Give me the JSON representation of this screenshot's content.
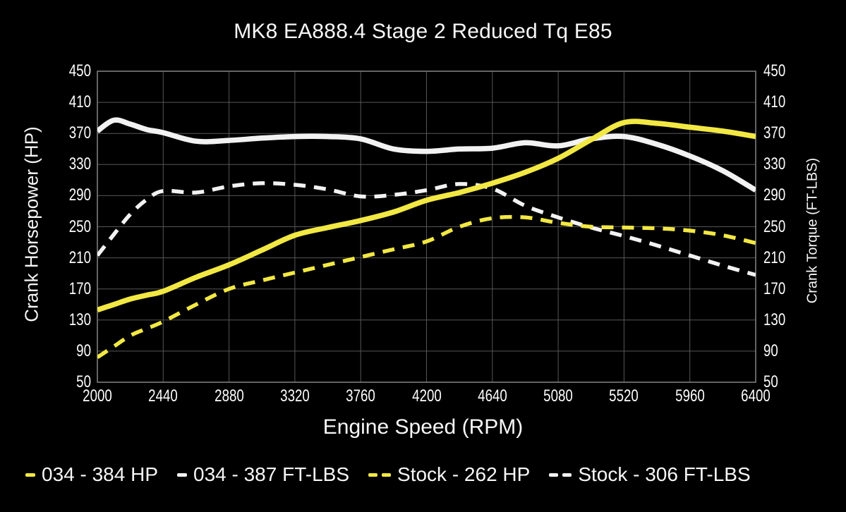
{
  "page": {
    "background": "#000000",
    "text_color": "#f7f7f7"
  },
  "chart_data": {
    "type": "line",
    "title": "MK8 EA888.4 Stage 2 Reduced Tq E85",
    "xlabel": "Engine Speed (RPM)",
    "ylabel_left": "Crank Horsepower (HP)",
    "ylabel_right": "Crank Torque (FT-LBS)",
    "xlim": [
      2000,
      6400
    ],
    "ylim": [
      50,
      450
    ],
    "x_ticks": [
      2000,
      2440,
      2880,
      3320,
      3760,
      4200,
      4640,
      5080,
      5520,
      5960,
      6400
    ],
    "y_ticks": [
      50,
      90,
      130,
      170,
      210,
      250,
      290,
      330,
      370,
      410,
      450
    ],
    "grid": true,
    "grid_color": "#575757",
    "border_color": "#7d7d7d",
    "legend_position": "bottom",
    "x": [
      2000,
      2110,
      2220,
      2330,
      2440,
      2660,
      2880,
      3100,
      3320,
      3540,
      3760,
      3980,
      4200,
      4420,
      4640,
      4860,
      5080,
      5300,
      5520,
      5740,
      5960,
      6180,
      6400
    ],
    "series": [
      {
        "name": "034 - 387 FT-LBS",
        "axis": "torque",
        "color": "#f2f2f2",
        "dash": "solid",
        "width": 7.5,
        "peak": 387,
        "values": [
          373,
          387,
          382,
          375,
          371,
          360,
          361,
          364,
          366,
          366,
          363,
          350,
          347,
          350,
          351,
          358,
          354,
          363,
          366,
          356,
          341,
          322,
          297
        ]
      },
      {
        "name": "Stock - 306 FT-LBS",
        "axis": "torque",
        "color": "#f2f2f2",
        "dash": "dashed",
        "width": 5.5,
        "peak": 306,
        "values": [
          213,
          240,
          266,
          285,
          296,
          294,
          302,
          306,
          304,
          298,
          289,
          291,
          297,
          305,
          299,
          277,
          262,
          249,
          238,
          226,
          213,
          200,
          188
        ]
      },
      {
        "name": "Stock - 262 HP",
        "axis": "hp",
        "color": "#f2e843",
        "dash": "dashed",
        "width": 5.5,
        "peak": 262,
        "values": [
          82,
          96,
          110,
          119,
          128,
          150,
          170,
          181,
          191,
          201,
          211,
          221,
          231,
          250,
          261,
          262,
          255,
          250,
          249,
          248,
          245,
          239,
          229
        ]
      },
      {
        "name": "034 - 384 HP",
        "axis": "hp",
        "color": "#f2e843",
        "dash": "solid",
        "width": 7.5,
        "peak": 384,
        "values": [
          143,
          150,
          157,
          162,
          167,
          185,
          201,
          220,
          239,
          249,
          258,
          269,
          284,
          294,
          306,
          320,
          338,
          362,
          384,
          383,
          378,
          373,
          366
        ]
      }
    ],
    "legend_order": [
      "034 - 384 HP",
      "034 - 387 FT-LBS",
      "Stock - 262 HP",
      "Stock - 306 FT-LBS"
    ]
  }
}
